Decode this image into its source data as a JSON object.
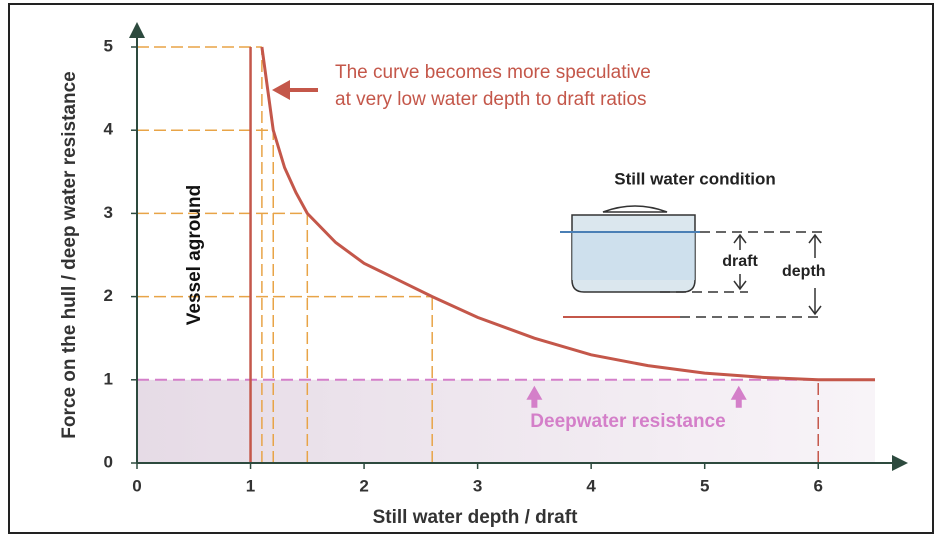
{
  "chart_data": {
    "type": "line",
    "xlabel": "Still water depth / draft",
    "ylabel": "Force on the hull / deep water resistance",
    "xlim": [
      0,
      6.5
    ],
    "ylim": [
      0,
      5
    ],
    "xticks": [
      0,
      1,
      2,
      3,
      4,
      5,
      6
    ],
    "yticks": [
      0,
      1,
      2,
      3,
      4,
      5
    ],
    "x": [
      1.1,
      1.15,
      1.2,
      1.3,
      1.4,
      1.5,
      1.75,
      2,
      2.3,
      2.6,
      3,
      3.5,
      4,
      4.5,
      5,
      5.5,
      6,
      6.5
    ],
    "series": [
      {
        "name": "Force",
        "color": "#c4574a",
        "values": [
          5,
          4.5,
          4,
          3.55,
          3.25,
          3,
          2.65,
          2.4,
          2.2,
          2,
          1.75,
          1.5,
          1.3,
          1.17,
          1.08,
          1.03,
          1,
          1
        ]
      }
    ],
    "guides": {
      "x": [
        1.1,
        1.2,
        1.5,
        2.6
      ],
      "y": [
        5,
        4,
        3,
        2
      ],
      "color": "#e8a447"
    },
    "aground_x": 1,
    "deepwater": {
      "y": 1,
      "end_x": 6,
      "arrows_x": [
        3.5,
        5.3
      ],
      "color": "#d47fc9"
    },
    "annotations": {
      "speculative": [
        "The curve becomes more speculative",
        "at very low water depth to draft ratios"
      ],
      "aground": "Vessel aground",
      "deepwater": "Deepwater resistance",
      "condition": "Still water condition",
      "draft": "draft",
      "depth": "depth"
    }
  }
}
